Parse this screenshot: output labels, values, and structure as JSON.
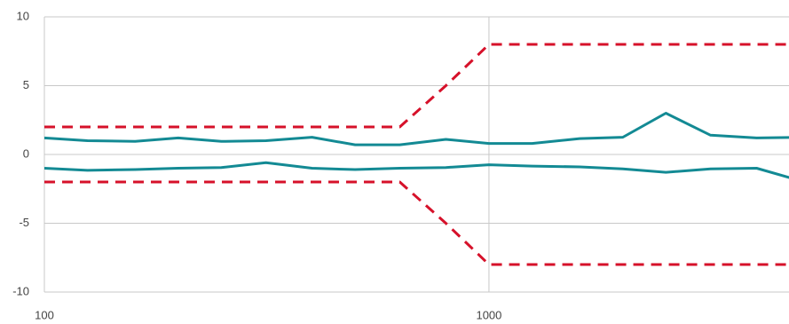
{
  "chart_data": {
    "type": "line",
    "x": [
      100,
      125,
      160,
      200,
      250,
      315,
      400,
      500,
      630,
      800,
      1000,
      1250,
      1600,
      2000,
      2500,
      3150,
      4000,
      5000
    ],
    "series": [
      {
        "color": "#138a94",
        "dashed": false,
        "values": [
          1.2,
          1.0,
          0.95,
          1.2,
          0.95,
          1.0,
          1.25,
          0.7,
          0.7,
          1.1,
          0.8,
          0.8,
          1.15,
          1.25,
          3.0,
          1.4,
          1.2,
          1.25
        ]
      },
      {
        "color": "#138a94",
        "dashed": false,
        "values": [
          -1.0,
          -1.15,
          -1.1,
          -1.0,
          -0.95,
          -0.6,
          -1.0,
          -1.1,
          -1.0,
          -0.95,
          -0.75,
          -0.85,
          -0.9,
          -1.05,
          -1.3,
          -1.05,
          -1.0,
          -1.9
        ]
      },
      {
        "color": "#d6112a",
        "dashed": true,
        "values": [
          2,
          2,
          2,
          2,
          2,
          2,
          2,
          2,
          2,
          5,
          8,
          8,
          8,
          8,
          8,
          8,
          8,
          8
        ]
      },
      {
        "color": "#d6112a",
        "dashed": true,
        "values": [
          -2,
          -2,
          -2,
          -2,
          -2,
          -2,
          -2,
          -2,
          -2,
          -5,
          -8,
          -8,
          -8,
          -8,
          -8,
          -8,
          -8,
          -8
        ]
      }
    ],
    "xlog": true,
    "xlim": [
      100,
      4730
    ],
    "xticks": [
      100,
      1000
    ],
    "ylim": [
      -10,
      10
    ],
    "yticks": [
      -10,
      -5,
      0,
      5,
      10
    ],
    "grid": true
  }
}
